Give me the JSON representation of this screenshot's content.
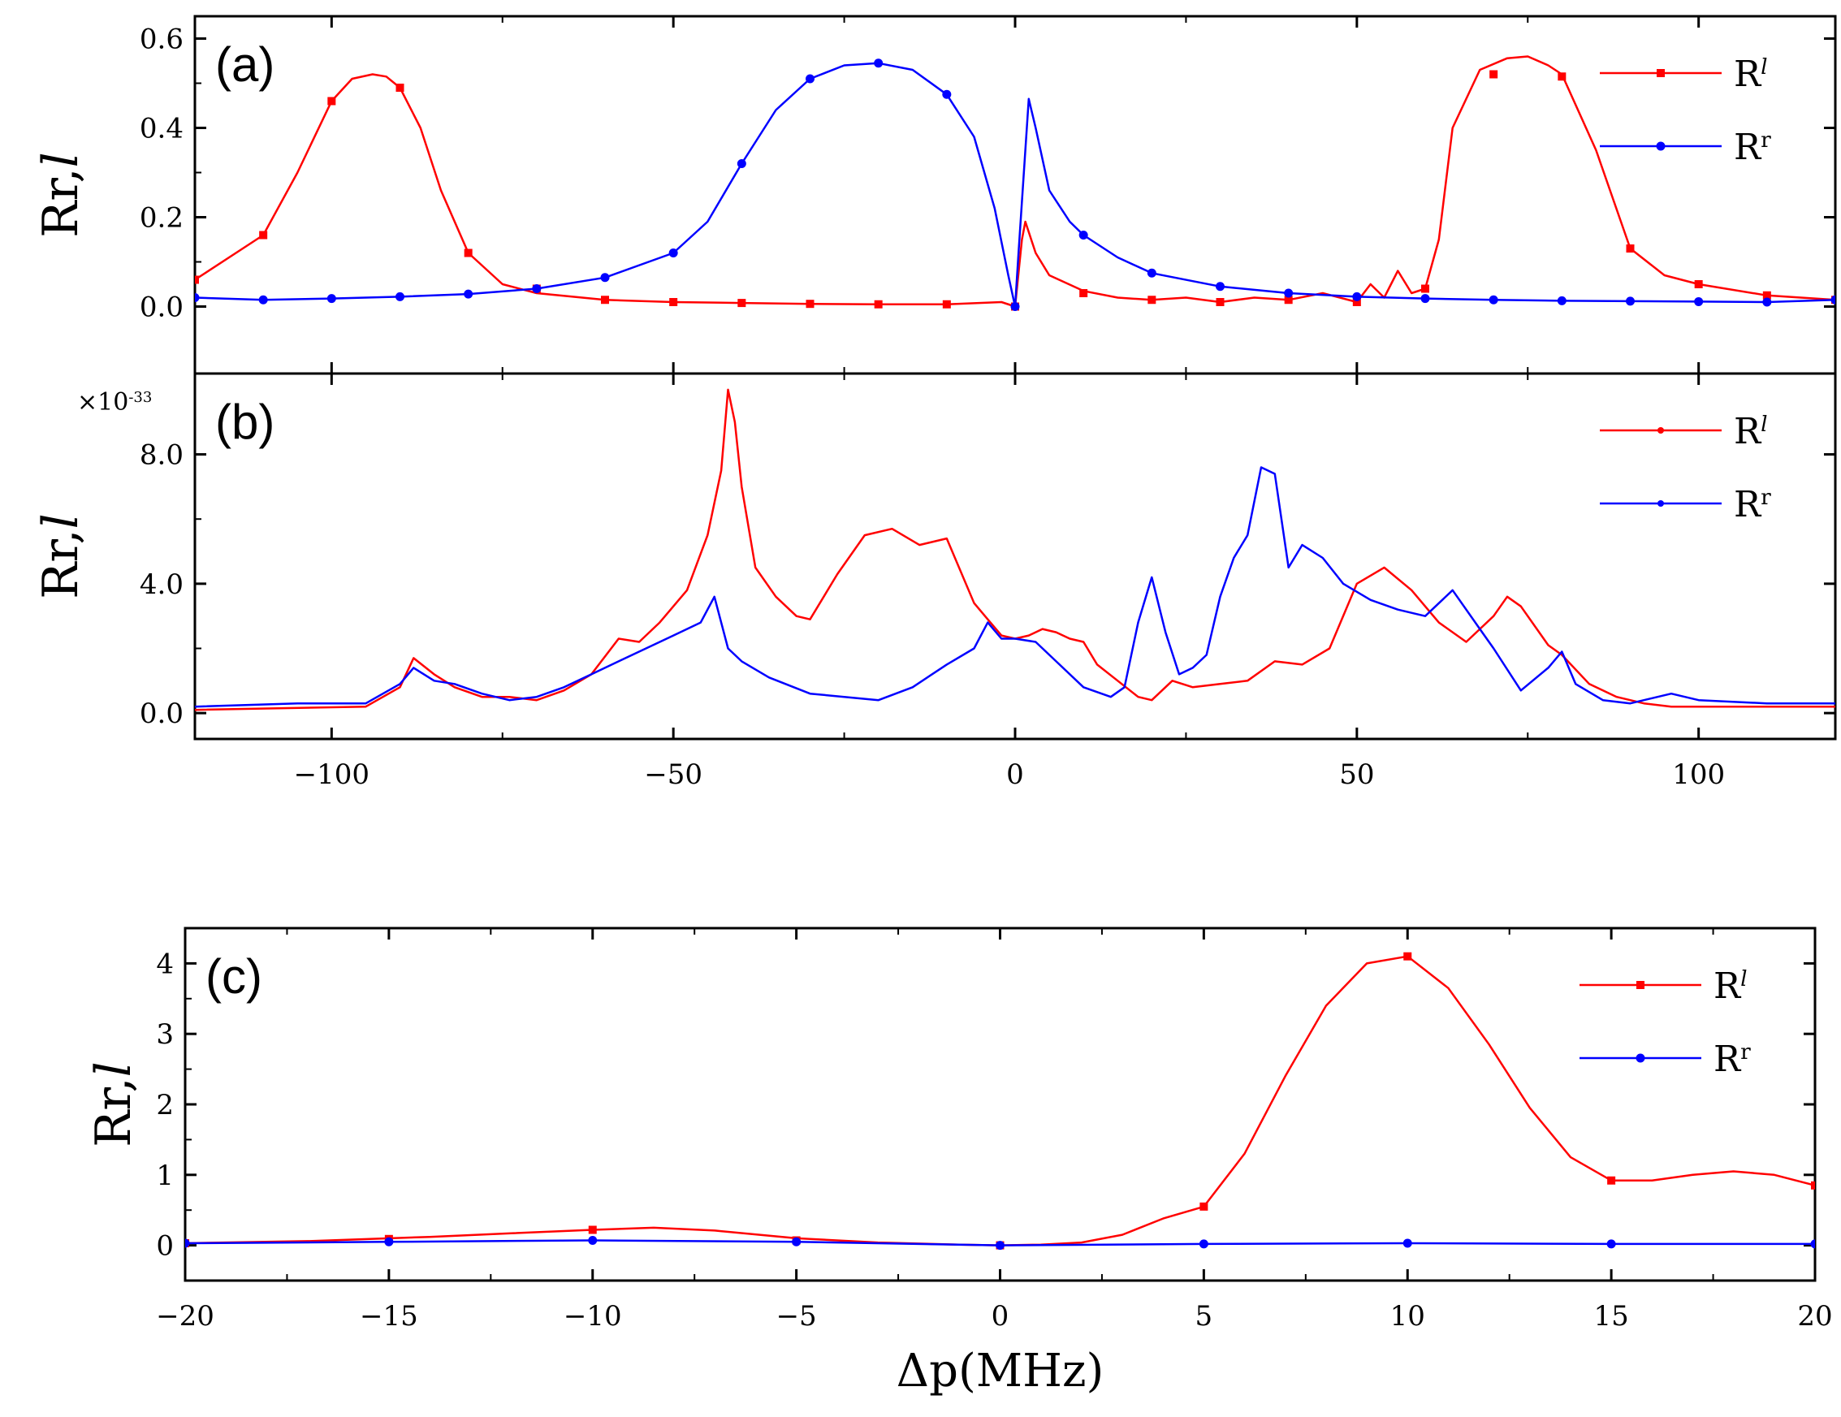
{
  "chart_data": [
    {
      "id": "a",
      "type": "line",
      "panel_label": "(a)",
      "ylabel": "Rr,l",
      "xlim": [
        -120,
        120
      ],
      "ylim": [
        -0.15,
        0.65
      ],
      "yticks": [
        0.0,
        0.2,
        0.4,
        0.6
      ],
      "ytick_labels": [
        "0.0",
        "0.2",
        "0.4",
        "0.6"
      ],
      "xticks": [
        -100,
        -50,
        0,
        50,
        100
      ],
      "xtick_labels": [],
      "legend": [
        "R^l",
        "R^r"
      ],
      "legend_position": "top-right",
      "series": [
        {
          "name": "R^l",
          "color": "#ff0000",
          "marker": "square",
          "x": [
            -120,
            -110,
            -105,
            -100,
            -97,
            -94,
            -92,
            -90,
            -87,
            -84,
            -80,
            -75,
            -70,
            -60,
            -50,
            -40,
            -30,
            -20,
            -10,
            -2,
            0,
            1,
            1.5,
            3,
            5,
            10,
            15,
            20,
            25,
            30,
            35,
            40,
            45,
            50,
            52,
            54,
            56,
            58,
            60,
            62,
            64,
            68,
            72,
            75,
            78,
            80,
            85,
            90,
            95,
            100,
            110,
            120
          ],
          "y": [
            0.06,
            0.16,
            0.3,
            0.46,
            0.51,
            0.52,
            0.515,
            0.49,
            0.4,
            0.26,
            0.12,
            0.05,
            0.03,
            0.015,
            0.01,
            0.008,
            0.006,
            0.005,
            0.005,
            0.01,
            0.0,
            0.15,
            0.19,
            0.12,
            0.07,
            0.035,
            0.02,
            0.015,
            0.02,
            0.01,
            0.02,
            0.015,
            0.03,
            0.01,
            0.05,
            0.02,
            0.08,
            0.03,
            0.04,
            0.15,
            0.4,
            0.53,
            0.556,
            0.56,
            0.54,
            0.52,
            0.35,
            0.13,
            0.07,
            0.05,
            0.025,
            0.015
          ],
          "marker_x": [
            -120,
            -110,
            -100,
            -90,
            -80,
            -70,
            -60,
            -50,
            -40,
            -30,
            -20,
            -10,
            0,
            10,
            20,
            30,
            40,
            50,
            60,
            70,
            80,
            90,
            100,
            110,
            120
          ],
          "marker_y": [
            0.06,
            0.16,
            0.46,
            0.49,
            0.12,
            0.04,
            0.015,
            0.01,
            0.008,
            0.006,
            0.005,
            0.005,
            0.0,
            0.03,
            0.015,
            0.01,
            0.015,
            0.01,
            0.04,
            0.52,
            0.515,
            0.13,
            0.05,
            0.025,
            0.015
          ]
        },
        {
          "name": "R^r",
          "color": "#0000ff",
          "marker": "circle",
          "x": [
            -120,
            -110,
            -100,
            -90,
            -80,
            -70,
            -60,
            -50,
            -45,
            -40,
            -35,
            -30,
            -25,
            -20,
            -15,
            -10,
            -6,
            -3,
            -1,
            0,
            0.5,
            2,
            3,
            5,
            8,
            10,
            15,
            20,
            30,
            40,
            50,
            60,
            70,
            80,
            90,
            100,
            110,
            120
          ],
          "y": [
            0.02,
            0.015,
            0.018,
            0.022,
            0.028,
            0.04,
            0.065,
            0.12,
            0.19,
            0.32,
            0.44,
            0.51,
            0.54,
            0.545,
            0.53,
            0.475,
            0.38,
            0.22,
            0.07,
            0.0,
            0.12,
            0.465,
            0.4,
            0.26,
            0.19,
            0.16,
            0.11,
            0.075,
            0.045,
            0.03,
            0.022,
            0.018,
            0.015,
            0.013,
            0.012,
            0.011,
            0.01,
            0.015
          ],
          "marker_x": [
            -120,
            -110,
            -100,
            -90,
            -80,
            -70,
            -60,
            -50,
            -40,
            -30,
            -20,
            -10,
            0,
            10,
            20,
            30,
            40,
            50,
            60,
            70,
            80,
            90,
            100,
            110,
            120
          ],
          "marker_y": [
            0.02,
            0.015,
            0.018,
            0.022,
            0.028,
            0.04,
            0.065,
            0.12,
            0.32,
            0.51,
            0.545,
            0.475,
            0.0,
            0.16,
            0.075,
            0.045,
            0.03,
            0.022,
            0.018,
            0.015,
            0.013,
            0.012,
            0.011,
            0.01,
            0.015
          ]
        }
      ]
    },
    {
      "id": "b",
      "type": "line",
      "panel_label": "(b)",
      "ylabel": "Rr,l",
      "multiplier": "×10",
      "multiplier_exp": "-33",
      "xlim": [
        -120,
        120
      ],
      "ylim": [
        -0.8,
        10.5
      ],
      "yticks": [
        0.0,
        4.0,
        8.0
      ],
      "ytick_labels": [
        "0.0",
        "4.0",
        "8.0"
      ],
      "xticks": [
        -100,
        -50,
        0,
        50,
        100
      ],
      "xtick_labels": [
        "-100",
        "-50",
        "0",
        "50",
        "100"
      ],
      "legend": [
        "R^l",
        "R^r"
      ],
      "legend_position": "top-right",
      "series": [
        {
          "name": "R^l",
          "color": "#ff0000",
          "x": [
            -120,
            -95,
            -90,
            -88,
            -85,
            -82,
            -78,
            -74,
            -70,
            -66,
            -62,
            -58,
            -55,
            -52,
            -48,
            -45,
            -43,
            -42,
            -41,
            -40,
            -38,
            -35,
            -32,
            -30,
            -26,
            -22,
            -18,
            -14,
            -10,
            -6,
            -4,
            -2,
            0,
            2,
            4,
            6,
            8,
            10,
            12,
            15,
            18,
            20,
            23,
            26,
            30,
            34,
            38,
            42,
            46,
            50,
            54,
            58,
            62,
            66,
            70,
            72,
            74,
            78,
            80,
            84,
            88,
            92,
            96,
            100,
            110,
            120
          ],
          "y": [
            0.1,
            0.2,
            0.8,
            1.7,
            1.2,
            0.8,
            0.5,
            0.5,
            0.4,
            0.7,
            1.2,
            2.3,
            2.2,
            2.8,
            3.8,
            5.5,
            7.5,
            10.0,
            9.0,
            7.0,
            4.5,
            3.6,
            3.0,
            2.9,
            4.3,
            5.5,
            5.7,
            5.2,
            5.4,
            3.4,
            2.9,
            2.4,
            2.3,
            2.4,
            2.6,
            2.5,
            2.3,
            2.2,
            1.5,
            1.0,
            0.5,
            0.4,
            1.0,
            0.8,
            0.9,
            1.0,
            1.6,
            1.5,
            2.0,
            4.0,
            4.5,
            3.8,
            2.8,
            2.2,
            3.0,
            3.6,
            3.3,
            2.1,
            1.8,
            0.9,
            0.5,
            0.3,
            0.2,
            0.2,
            0.2,
            0.2
          ]
        },
        {
          "name": "R^r",
          "color": "#0000ff",
          "x": [
            -120,
            -105,
            -95,
            -90,
            -88,
            -85,
            -82,
            -78,
            -74,
            -70,
            -66,
            -62,
            -58,
            -54,
            -50,
            -46,
            -44,
            -42,
            -40,
            -36,
            -30,
            -25,
            -20,
            -15,
            -10,
            -6,
            -4,
            -2,
            0,
            3,
            6,
            10,
            14,
            16,
            18,
            20,
            22,
            24,
            26,
            28,
            30,
            32,
            34,
            36,
            38,
            40,
            42,
            45,
            48,
            52,
            56,
            60,
            64,
            68,
            70,
            74,
            78,
            80,
            82,
            86,
            90,
            96,
            100,
            110,
            120
          ],
          "y": [
            0.2,
            0.3,
            0.3,
            0.9,
            1.4,
            1.0,
            0.9,
            0.6,
            0.4,
            0.5,
            0.8,
            1.2,
            1.6,
            2.0,
            2.4,
            2.8,
            3.6,
            2.0,
            1.6,
            1.1,
            0.6,
            0.5,
            0.4,
            0.8,
            1.5,
            2.0,
            2.8,
            2.3,
            2.3,
            2.2,
            1.6,
            0.8,
            0.5,
            0.8,
            2.8,
            4.2,
            2.5,
            1.2,
            1.4,
            1.8,
            3.6,
            4.8,
            5.5,
            7.6,
            7.4,
            4.5,
            5.2,
            4.8,
            4.0,
            3.5,
            3.2,
            3.0,
            3.8,
            2.6,
            2.0,
            0.7,
            1.4,
            1.9,
            0.9,
            0.4,
            0.3,
            0.6,
            0.4,
            0.3,
            0.3
          ]
        }
      ]
    },
    {
      "id": "c",
      "type": "line",
      "panel_label": "(c)",
      "ylabel": "Rr,l",
      "xlabel": "Δp(MHz)",
      "xlim": [
        -20,
        20
      ],
      "ylim": [
        -0.5,
        4.5
      ],
      "yticks": [
        0,
        1,
        2,
        3,
        4
      ],
      "ytick_labels": [
        "0",
        "1",
        "2",
        "3",
        "4"
      ],
      "xticks": [
        -20,
        -15,
        -10,
        -5,
        0,
        5,
        10,
        15,
        20
      ],
      "xtick_labels": [
        "-20",
        "-15",
        "-10",
        "-5",
        "0",
        "5",
        "10",
        "15",
        "20"
      ],
      "legend": [
        "R^l",
        "R^r"
      ],
      "legend_position": "top-right",
      "series": [
        {
          "name": "R^l",
          "color": "#ff0000",
          "marker": "square",
          "x": [
            -20,
            -17,
            -14,
            -12,
            -10,
            -8.5,
            -7,
            -5,
            -3,
            -1,
            0,
            1,
            2,
            3,
            4,
            5,
            6,
            7,
            8,
            9,
            10,
            11,
            12,
            13,
            14,
            15,
            16,
            17,
            18,
            19,
            20
          ],
          "y": [
            0.03,
            0.06,
            0.12,
            0.17,
            0.22,
            0.25,
            0.21,
            0.1,
            0.04,
            0.01,
            0.0,
            0.01,
            0.04,
            0.15,
            0.38,
            0.55,
            1.3,
            2.4,
            3.4,
            4.0,
            4.1,
            3.65,
            2.85,
            1.95,
            1.25,
            0.92,
            0.92,
            1.0,
            1.05,
            1.0,
            0.85
          ],
          "marker_x": [
            -20,
            -15,
            -10,
            -5,
            0,
            5,
            10,
            15,
            20
          ],
          "marker_y": [
            0.03,
            0.09,
            0.22,
            0.07,
            0.0,
            0.55,
            4.1,
            0.92,
            0.85
          ]
        },
        {
          "name": "R^r",
          "color": "#0000ff",
          "marker": "circle",
          "x": [
            -20,
            -15,
            -10,
            -5,
            0,
            5,
            10,
            15,
            20
          ],
          "y": [
            0.03,
            0.05,
            0.07,
            0.05,
            0.0,
            0.02,
            0.03,
            0.02,
            0.02
          ],
          "marker_x": [
            -20,
            -15,
            -10,
            -5,
            0,
            5,
            10,
            15,
            20
          ],
          "marker_y": [
            0.03,
            0.05,
            0.07,
            0.05,
            0.0,
            0.02,
            0.03,
            0.02,
            0.02
          ]
        }
      ]
    }
  ]
}
